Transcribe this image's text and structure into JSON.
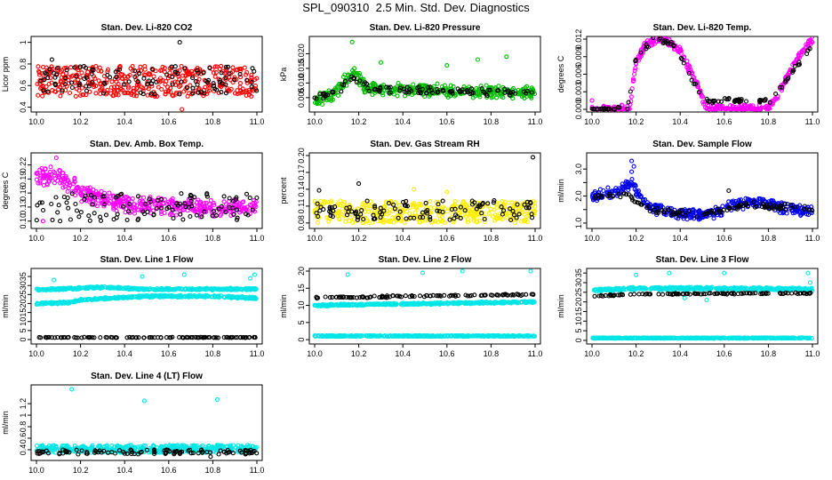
{
  "page_title": "SPL_090310  2.5 Min. Std. Dev. Diagnostics",
  "x_range": [
    10.0,
    11.0
  ],
  "x_ticks": [
    "10.0",
    "10.2",
    "10.4",
    "10.6",
    "10.8",
    "11.0"
  ],
  "chart_data": [
    {
      "type": "scatter",
      "title": "Stan. Dev. Li-820 CO2",
      "ylabel": "Licor ppm",
      "ylim": [
        0.38,
        1.03
      ],
      "yticks": [
        0.4,
        0.6,
        0.8,
        1.0
      ],
      "series": [
        {
          "color": "#ff0000",
          "model": {
            "kind": "band",
            "lo": 0.5,
            "hi": 0.78,
            "outliers": [
              [
                10.66,
                0.38
              ]
            ]
          }
        },
        {
          "color": "#000000",
          "model": {
            "kind": "band",
            "lo": 0.52,
            "hi": 0.78,
            "outliers": [
              [
                10.07,
                0.84
              ],
              [
                10.65,
                1.0
              ],
              [
                10.98,
                0.76
              ]
            ]
          }
        }
      ]
    },
    {
      "type": "scatter",
      "title": "Stan. Dev. Li-820 Pressure",
      "ylabel": "kPa",
      "ylim": [
        0.001,
        0.025
      ],
      "yticks": [
        0.005,
        0.01,
        0.015,
        0.02
      ],
      "ytick_labels": [
        "0.005",
        "0.010",
        "0.015",
        "0.020"
      ],
      "series": [
        {
          "color": "#00bb00",
          "model": {
            "kind": "keys",
            "keys": [
              [
                10.0,
                0.004
              ],
              [
                10.1,
                0.007
              ],
              [
                10.15,
                0.012
              ],
              [
                10.18,
                0.014
              ],
              [
                10.23,
                0.008
              ],
              [
                10.5,
                0.0075
              ],
              [
                11.0,
                0.0065
              ]
            ],
            "spread": 0.0025,
            "outliers": [
              [
                10.17,
                0.024
              ],
              [
                10.18,
                0.015
              ],
              [
                10.6,
                0.016
              ],
              [
                10.74,
                0.018
              ],
              [
                10.87,
                0.019
              ],
              [
                10.3,
                0.017
              ]
            ]
          }
        },
        {
          "color": "#000000",
          "model": {
            "kind": "keys",
            "keys": [
              [
                10.0,
                0.005
              ],
              [
                10.1,
                0.007
              ],
              [
                10.17,
                0.012
              ],
              [
                10.25,
                0.008
              ],
              [
                11.0,
                0.0065
              ]
            ],
            "spread": 0.0015,
            "outliers": []
          }
        }
      ]
    },
    {
      "type": "scatter",
      "title": "Stan. Dev. Li-820 Temp.",
      "ylabel": "degrees C",
      "ylim": [
        0.0,
        0.012
      ],
      "yticks": [
        0.0,
        0.003,
        0.006,
        0.009,
        0.012
      ],
      "ytick_labels": [
        "0.000",
        "0.003",
        "0.006",
        "0.009",
        "0.012"
      ],
      "series": [
        {
          "color": "#ff00ff",
          "model": {
            "kind": "keys",
            "keys": [
              [
                10.0,
                0.0
              ],
              [
                10.17,
                0.0
              ],
              [
                10.2,
                0.008
              ],
              [
                10.25,
                0.0115
              ],
              [
                10.33,
                0.012
              ],
              [
                10.4,
                0.01
              ],
              [
                10.48,
                0.004
              ],
              [
                10.52,
                0.0
              ],
              [
                10.8,
                0.0
              ],
              [
                10.85,
                0.003
              ],
              [
                10.92,
                0.008
              ],
              [
                11.0,
                0.012
              ]
            ],
            "spread": 0.0008,
            "outliers": [
              [
                10.0,
                0.0015
              ]
            ]
          }
        },
        {
          "color": "#000000",
          "model": {
            "kind": "keys",
            "keys": [
              [
                10.0,
                0.0
              ],
              [
                10.16,
                0.0
              ],
              [
                10.2,
                0.009
              ],
              [
                10.28,
                0.012
              ],
              [
                10.38,
                0.011
              ],
              [
                10.47,
                0.004
              ],
              [
                10.52,
                0.0015
              ],
              [
                10.82,
                0.0015
              ],
              [
                10.9,
                0.006
              ],
              [
                11.0,
                0.011
              ]
            ],
            "spread": 0.0005,
            "outliers": []
          }
        }
      ]
    },
    {
      "type": "scatter",
      "title": "Stan. Dev. Amb. Box Temp.",
      "ylabel": "degrees C",
      "ylim": [
        0.09,
        0.24
      ],
      "yticks": [
        0.1,
        0.13,
        0.16,
        0.19,
        0.22
      ],
      "ytick_labels": [
        "0.10",
        "0.13",
        "0.16",
        "0.19",
        "0.22"
      ],
      "series": [
        {
          "color": "#ff00ff",
          "model": {
            "kind": "keys",
            "keys": [
              [
                10.0,
                0.19
              ],
              [
                10.1,
                0.2
              ],
              [
                10.2,
                0.16
              ],
              [
                10.4,
                0.135
              ],
              [
                10.7,
                0.13
              ],
              [
                11.0,
                0.13
              ]
            ],
            "spread": 0.022,
            "outliers": [
              [
                10.09,
                0.235
              ],
              [
                10.03,
                0.1
              ]
            ]
          }
        },
        {
          "color": "#000000",
          "model": {
            "kind": "band",
            "lo": 0.1,
            "hi": 0.16,
            "outliers": []
          }
        }
      ]
    },
    {
      "type": "scatter",
      "title": "Stan. Dev. Gas Stream RH",
      "ylabel": "percent",
      "ylim": [
        0.075,
        0.2
      ],
      "yticks": [
        0.08,
        0.11,
        0.14,
        0.17,
        0.2
      ],
      "ytick_labels": [
        "0.08",
        "0.11",
        "0.14",
        "0.17",
        "0.20"
      ],
      "series": [
        {
          "color": "#ffee00",
          "model": {
            "kind": "band",
            "lo": 0.08,
            "hi": 0.12,
            "outliers": [
              [
                10.45,
                0.14
              ],
              [
                10.6,
                0.135
              ]
            ]
          }
        },
        {
          "color": "#000000",
          "model": {
            "kind": "band",
            "lo": 0.085,
            "hi": 0.12,
            "outliers": [
              [
                10.2,
                0.15
              ],
              [
                10.02,
                0.138
              ],
              [
                10.99,
                0.197
              ]
            ]
          }
        }
      ]
    },
    {
      "type": "scatter",
      "title": "Stan. Dev. Sample Flow",
      "ylabel": "ml/min",
      "ylim": [
        0.9,
        3.5
      ],
      "yticks": [
        1.0,
        1.5,
        2.0,
        2.5,
        3.0
      ],
      "ytick_labels": [
        "1.0",
        "",
        "2.0",
        "",
        "3.0"
      ],
      "series": [
        {
          "color": "#0000ee",
          "model": {
            "kind": "keys",
            "keys": [
              [
                10.0,
                1.95
              ],
              [
                10.12,
                2.2
              ],
              [
                10.18,
                2.5
              ],
              [
                10.25,
                1.6
              ],
              [
                10.4,
                1.3
              ],
              [
                10.55,
                1.3
              ],
              [
                10.65,
                1.7
              ],
              [
                10.75,
                1.8
              ],
              [
                10.9,
                1.5
              ],
              [
                11.0,
                1.45
              ]
            ],
            "spread": 0.25,
            "outliers": [
              [
                10.18,
                3.3
              ],
              [
                10.19,
                3.1
              ],
              [
                10.18,
                2.9
              ]
            ]
          }
        },
        {
          "color": "#000000",
          "model": {
            "kind": "keys",
            "keys": [
              [
                10.0,
                1.9
              ],
              [
                10.15,
                2.1
              ],
              [
                10.25,
                1.5
              ],
              [
                10.5,
                1.3
              ],
              [
                10.7,
                1.7
              ],
              [
                11.0,
                1.5
              ]
            ],
            "spread": 0.15,
            "outliers": [
              [
                10.62,
                2.2
              ]
            ]
          }
        }
      ]
    },
    {
      "type": "scatter",
      "title": "Stan. Dev. Line 1 Flow",
      "ylabel": "ml/min",
      "ylim": [
        -1,
        38
      ],
      "yticks": [
        0,
        5,
        10,
        15,
        20,
        25,
        30,
        35
      ],
      "series": [
        {
          "color": "#00e5e5",
          "model": {
            "kind": "keys",
            "keys": [
              [
                10.0,
                27.5
              ],
              [
                10.3,
                29
              ],
              [
                10.5,
                28
              ],
              [
                11.0,
                28
              ]
            ],
            "spread": 0.6,
            "outliers": [
              [
                10.08,
                33
              ],
              [
                10.48,
                35
              ],
              [
                10.67,
                36
              ],
              [
                10.99,
                36
              ],
              [
                10.97,
                34
              ]
            ]
          }
        },
        {
          "color": "#00e5e5",
          "model": {
            "kind": "keys",
            "keys": [
              [
                10.0,
                20
              ],
              [
                10.15,
                20.5
              ],
              [
                10.2,
                22
              ],
              [
                10.5,
                24
              ],
              [
                10.8,
                24
              ],
              [
                11.0,
                23
              ]
            ],
            "spread": 0.6,
            "outliers": []
          }
        },
        {
          "color": "#000000",
          "model": {
            "kind": "band",
            "lo": 1.0,
            "hi": 1.3,
            "outliers": []
          }
        }
      ]
    },
    {
      "type": "scatter",
      "title": "Stan. Dev. Line 2 Flow",
      "ylabel": "ml/min",
      "ylim": [
        -0.5,
        20
      ],
      "yticks": [
        0,
        5,
        10,
        15,
        20
      ],
      "series": [
        {
          "color": "#00e5e5",
          "model": {
            "kind": "keys",
            "keys": [
              [
                10.0,
                10
              ],
              [
                11.0,
                11
              ]
            ],
            "spread": 0.3,
            "outliers": [
              [
                10.15,
                19
              ],
              [
                10.49,
                19.5
              ],
              [
                10.67,
                20
              ],
              [
                10.98,
                20
              ]
            ]
          }
        },
        {
          "color": "#00e5e5",
          "model": {
            "kind": "band",
            "lo": 0.9,
            "hi": 1.2,
            "outliers": []
          }
        },
        {
          "color": "#000000",
          "model": {
            "kind": "keys",
            "keys": [
              [
                10.0,
                12.2
              ],
              [
                11.0,
                13.2
              ]
            ],
            "spread": 0.3,
            "outliers": []
          }
        }
      ]
    },
    {
      "type": "scatter",
      "title": "Stan. Dev. Line 3 Flow",
      "ylabel": "ml/min",
      "ylim": [
        -0.5,
        36
      ],
      "yticks": [
        0,
        5,
        10,
        15,
        20,
        25,
        30,
        35
      ],
      "series": [
        {
          "color": "#00e5e5",
          "model": {
            "kind": "keys",
            "keys": [
              [
                10.0,
                26
              ],
              [
                10.2,
                27
              ],
              [
                10.5,
                27
              ],
              [
                11.0,
                26.5
              ]
            ],
            "spread": 0.8,
            "outliers": [
              [
                10.2,
                34
              ],
              [
                10.35,
                35
              ],
              [
                10.42,
                22
              ],
              [
                10.52,
                21
              ],
              [
                10.6,
                35
              ],
              [
                10.98,
                35
              ],
              [
                10.99,
                30
              ]
            ]
          }
        },
        {
          "color": "#00e5e5",
          "model": {
            "kind": "band",
            "lo": 1.0,
            "hi": 1.4,
            "outliers": []
          }
        },
        {
          "color": "#000000",
          "model": {
            "kind": "keys",
            "keys": [
              [
                10.0,
                23
              ],
              [
                10.2,
                24
              ],
              [
                11.0,
                24.5
              ]
            ],
            "spread": 0.4,
            "outliers": []
          }
        }
      ]
    },
    {
      "type": "scatter",
      "title": "Stan. Dev. Line 4 (LT) Flow",
      "ylabel": "ml/min",
      "ylim": [
        0.26,
        1.48
      ],
      "yticks": [
        0.4,
        0.6,
        0.8,
        1.0,
        1.2
      ],
      "series": [
        {
          "color": "#00e5e5",
          "model": {
            "kind": "band",
            "lo": 0.35,
            "hi": 0.48,
            "outliers": [
              [
                10.16,
                1.45
              ],
              [
                10.49,
                1.25
              ],
              [
                10.82,
                1.27
              ]
            ]
          }
        },
        {
          "color": "#000000",
          "model": {
            "kind": "band",
            "lo": 0.32,
            "hi": 0.4,
            "outliers": [
              [
                10.79,
                0.28
              ]
            ]
          }
        }
      ]
    }
  ]
}
